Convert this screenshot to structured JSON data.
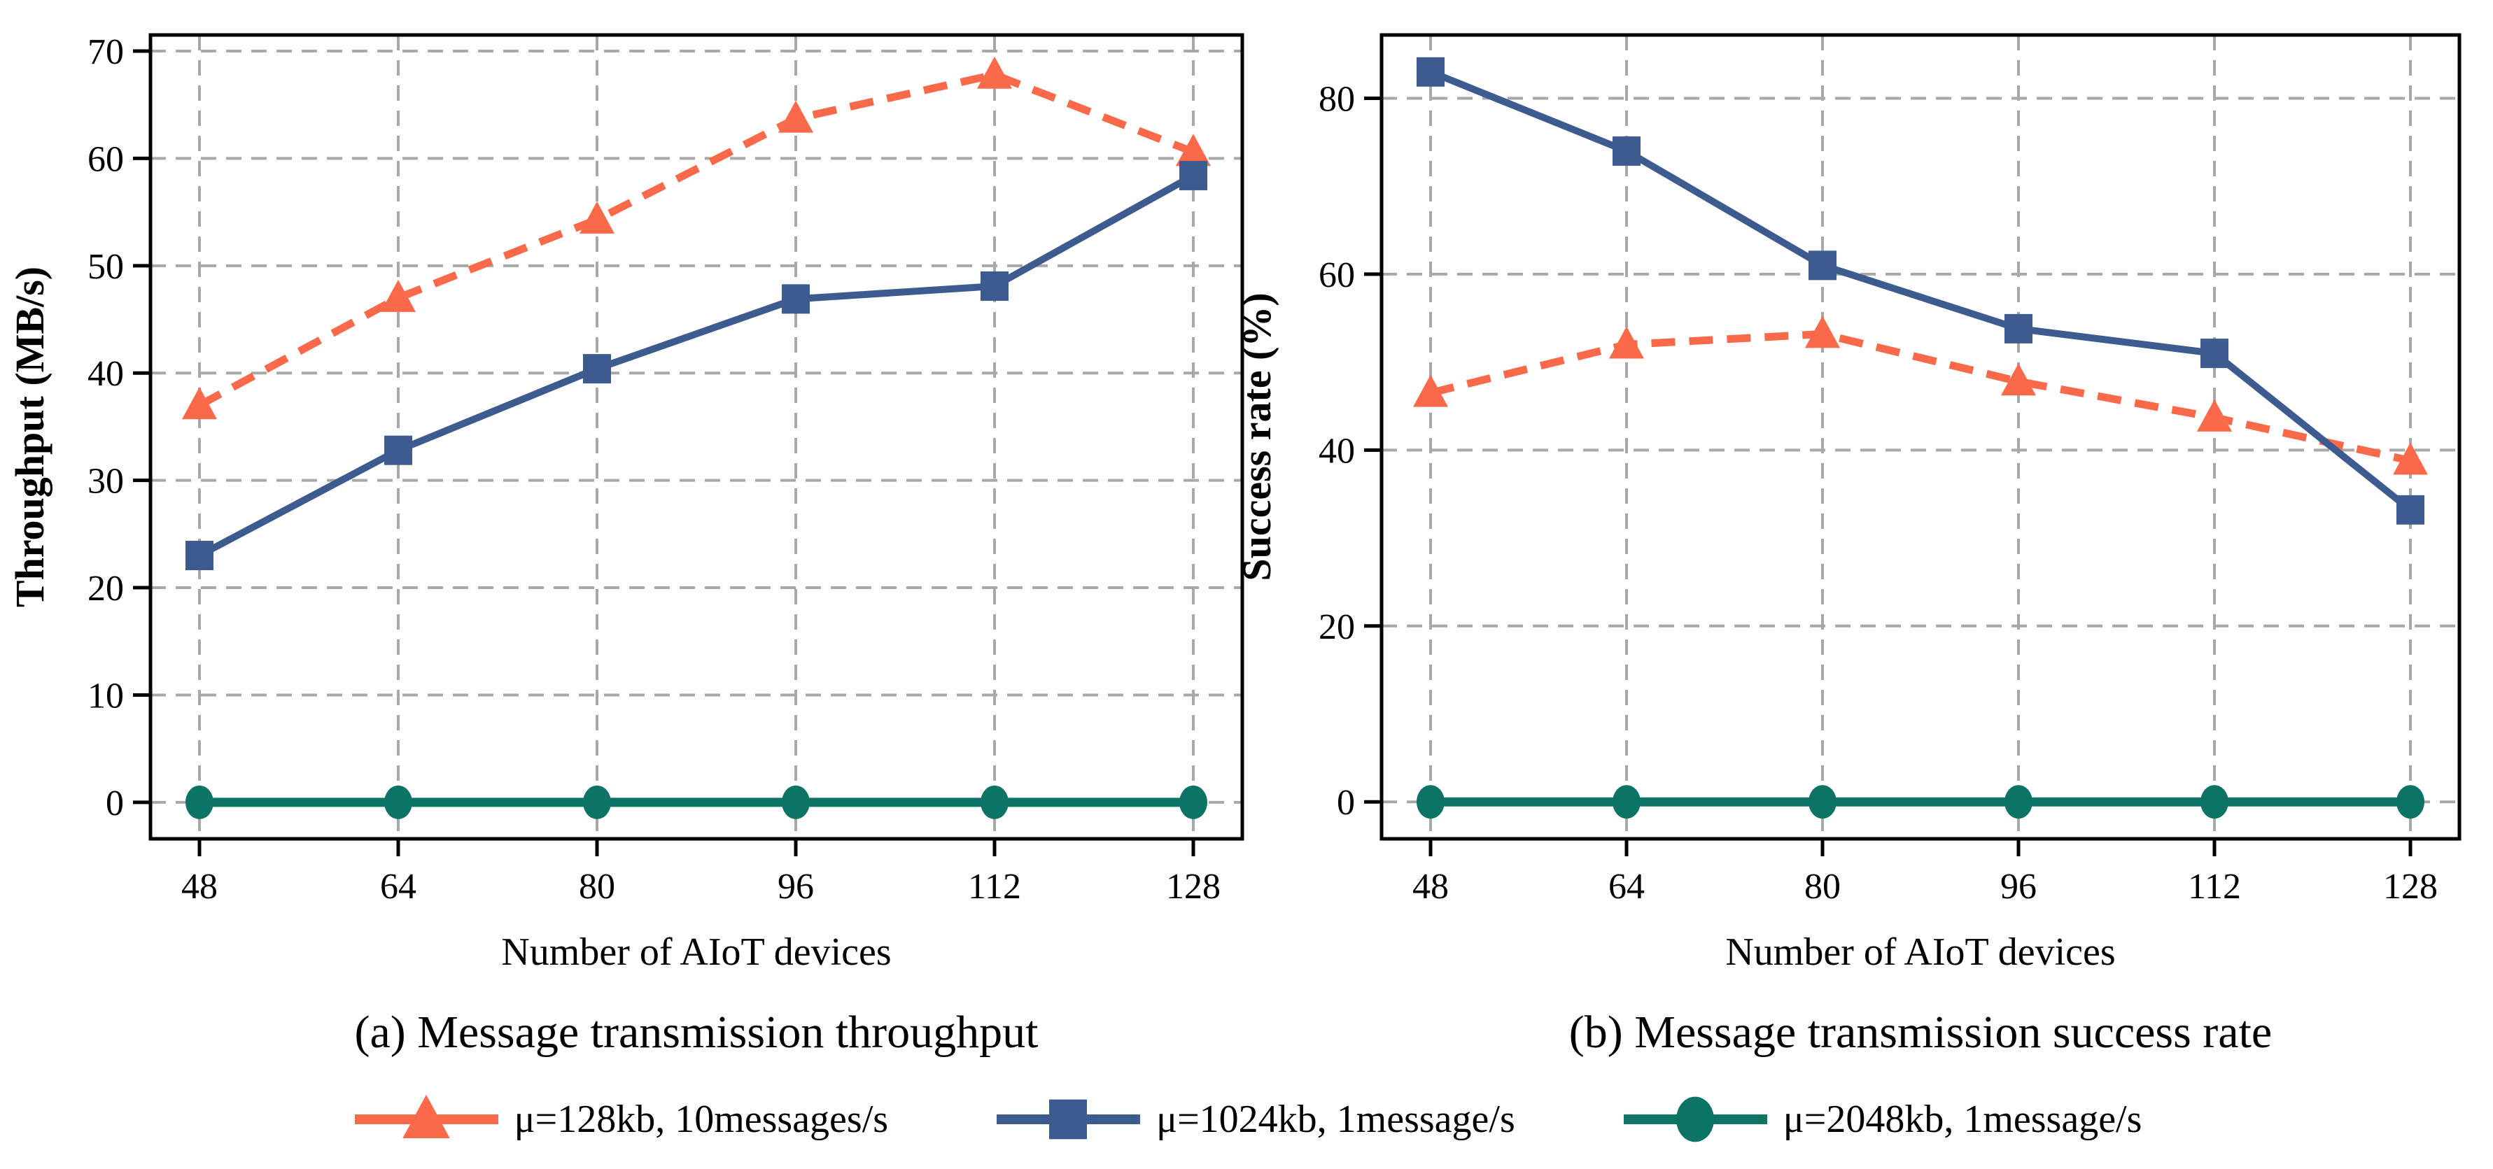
{
  "style": {
    "background": "#ffffff",
    "axis_color": "#000000",
    "grid_color": "#a8a8a8",
    "text_color": "#000000"
  },
  "chart_data": [
    {
      "id": "throughput",
      "type": "line",
      "caption": "(a) Message transmission throughput",
      "xlabel": "Number of AIoT devices",
      "ylabel": "Throughput (MB/s)",
      "x": [
        48,
        64,
        80,
        96,
        112,
        128
      ],
      "xticklabels": [
        "48",
        "64",
        "80",
        "96",
        "112",
        "128"
      ],
      "ylim": [
        -3.4,
        71.5
      ],
      "yticks": [
        0,
        10,
        20,
        30,
        40,
        50,
        60,
        70
      ],
      "grid": true,
      "legend_position": "bottom",
      "series": [
        {
          "name": "μ=128kb, 10messages/s",
          "color": "#FA6A4A",
          "line": "dashed",
          "marker": "triangle",
          "lw": 11,
          "values": [
            37,
            47,
            54.3,
            63.7,
            67.8,
            60.6
          ]
        },
        {
          "name": "μ=1024kb, 1message/s",
          "color": "#3D5B8E",
          "line": "solid",
          "marker": "square",
          "lw": 10,
          "values": [
            23,
            32.8,
            40.4,
            46.9,
            48.1,
            58.4
          ]
        },
        {
          "name": "μ=2048kb, 1message/s",
          "color": "#0D7465",
          "line": "solid",
          "marker": "circle",
          "lw": 13,
          "values": [
            0,
            0,
            0,
            0,
            0,
            0
          ]
        }
      ]
    },
    {
      "id": "success_rate",
      "type": "line",
      "caption": "(b) Message transmission success rate",
      "xlabel": "Number of AIoT devices",
      "ylabel": "Success rate (%)",
      "x": [
        48,
        64,
        80,
        96,
        112,
        128
      ],
      "xticklabels": [
        "48",
        "64",
        "80",
        "96",
        "112",
        "128"
      ],
      "ylim": [
        -4.2,
        87.2
      ],
      "yticks": [
        0,
        20,
        40,
        60,
        80
      ],
      "grid": true,
      "legend_position": "bottom",
      "series": [
        {
          "name": "μ=128kb, 10messages/s",
          "color": "#FA6A4A",
          "line": "dashed",
          "marker": "triangle",
          "lw": 11,
          "values": [
            46.5,
            52,
            53.2,
            47.8,
            43.7,
            38.8
          ]
        },
        {
          "name": "μ=1024kb, 1message/s",
          "color": "#3D5B8E",
          "line": "solid",
          "marker": "square",
          "lw": 10,
          "values": [
            83,
            74,
            61,
            53.8,
            51,
            33.2
          ]
        },
        {
          "name": "μ=2048kb, 1message/s",
          "color": "#0D7465",
          "line": "solid",
          "marker": "circle",
          "lw": 13,
          "values": [
            0,
            0,
            0,
            0,
            0,
            0
          ]
        }
      ]
    }
  ]
}
